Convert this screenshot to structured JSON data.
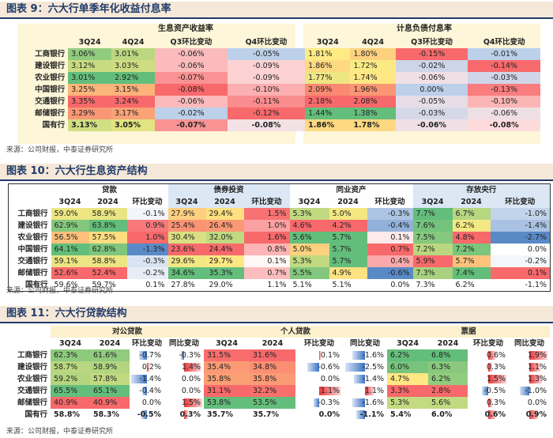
{
  "fig9": {
    "title": "图表 9：六大行单季年化收益付息率",
    "group1": "生息资产收益率",
    "group2": "计息负债付息率",
    "cols": [
      "3Q24",
      "4Q24",
      "Q3环比变动",
      "Q4环比变动",
      "3Q24",
      "4Q24",
      "Q3环比变动",
      "Q4环比变动"
    ],
    "rows": [
      {
        "bank": "工商银行",
        "v": [
          "3.06%",
          "3.01%",
          "-0.06%",
          "-0.05%",
          "1.81%",
          "1.80%",
          "-0.15%",
          "-0.01%"
        ]
      },
      {
        "bank": "建设银行",
        "v": [
          "3.12%",
          "3.03%",
          "-0.06%",
          "-0.09%",
          "1.86%",
          "1.72%",
          "-0.02%",
          "-0.14%"
        ]
      },
      {
        "bank": "农业银行",
        "v": [
          "3.01%",
          "2.92%",
          "-0.07%",
          "-0.09%",
          "1.77%",
          "1.74%",
          "-0.06%",
          "-0.03%"
        ]
      },
      {
        "bank": "中国银行",
        "v": [
          "3.25%",
          "3.15%",
          "-0.08%",
          "-0.10%",
          "2.09%",
          "1.96%",
          "0.00%",
          "-0.13%"
        ]
      },
      {
        "bank": "交通银行",
        "v": [
          "3.35%",
          "3.24%",
          "-0.06%",
          "-0.11%",
          "2.18%",
          "2.08%",
          "-0.05%",
          "-0.10%"
        ]
      },
      {
        "bank": "邮储银行",
        "v": [
          "3.29%",
          "3.17%",
          "-0.02%",
          "-0.12%",
          "1.44%",
          "1.38%",
          "-0.03%",
          "-0.06%"
        ]
      },
      {
        "bank": "国有行",
        "v": [
          "3.13%",
          "3.05%",
          "-0.07%",
          "-0.08%",
          "1.86%",
          "1.78%",
          "-0.06%",
          "-0.08%"
        ]
      }
    ],
    "colors": [
      [
        "#ffffff",
        "#ffffff",
        "#ffffff",
        "#ffffff",
        "#ffffff",
        "#ffffff",
        "#ffffff",
        "#ffffff"
      ]
    ],
    "source": "来源：公司财报，中泰证券研究所"
  },
  "fig10": {
    "title": "图表 10：六大行生息资产结构",
    "groups": [
      "贷款",
      "债券投资",
      "同业资产",
      "存放央行"
    ],
    "cols": [
      "3Q24",
      "2024",
      "环比变动",
      "3Q24",
      "2024",
      "环比变动",
      "3Q24",
      "2024",
      "环比变动",
      "3Q24",
      "2024",
      "环比变动"
    ],
    "rows": [
      {
        "bank": "工商银行",
        "v": [
          "59.0%",
          "58.9%",
          "-0.1%",
          "27.9%",
          "29.4%",
          "1.5%",
          "5.3%",
          "5.0%",
          "-0.3%",
          "7.7%",
          "6.7%",
          "-1.0%"
        ]
      },
      {
        "bank": "建设银行",
        "v": [
          "62.9%",
          "63.8%",
          "0.9%",
          "25.4%",
          "26.4%",
          "1.0%",
          "4.6%",
          "4.2%",
          "-0.4%",
          "7.6%",
          "6.2%",
          "-1.4%"
        ]
      },
      {
        "bank": "农业银行",
        "v": [
          "56.5%",
          "57.5%",
          "1.0%",
          "30.4%",
          "32.0%",
          "1.6%",
          "5.6%",
          "5.7%",
          "0.1%",
          "7.5%",
          "4.8%",
          "-2.7%"
        ]
      },
      {
        "bank": "中国银行",
        "v": [
          "64.1%",
          "62.8%",
          "-1.3%",
          "23.6%",
          "24.4%",
          "0.8%",
          "5.0%",
          "5.7%",
          "0.7%",
          "7.2%",
          "7.2%",
          "0.0%"
        ]
      },
      {
        "bank": "交通银行",
        "v": [
          "59.1%",
          "58.8%",
          "-0.3%",
          "29.6%",
          "29.7%",
          "0.1%",
          "5.3%",
          "5.7%",
          "0.4%",
          "5.9%",
          "5.7%",
          "-0.2%"
        ]
      },
      {
        "bank": "邮储银行",
        "v": [
          "52.6%",
          "52.4%",
          "-0.2%",
          "34.6%",
          "35.3%",
          "0.7%",
          "5.5%",
          "4.9%",
          "-0.6%",
          "7.3%",
          "7.4%",
          "0.1%"
        ]
      },
      {
        "bank": "国有行",
        "v": [
          "59.6%",
          "59.7%",
          "0.1%",
          "27.8%",
          "29.0%",
          "1.1%",
          "5.1%",
          "5.1%",
          "0.0%",
          "7.3%",
          "6.2%",
          "-1.1%"
        ]
      }
    ],
    "source": "来源：公司财报，中泰证券研究所"
  },
  "fig11": {
    "title": "图表 11：六大行贷款结构",
    "groups": [
      "对公贷款",
      "个人贷款",
      "票据"
    ],
    "cols": [
      "3Q24",
      "2024",
      "环比变动",
      "同比变动",
      "3Q24",
      "2024",
      "环比变动",
      "同比变动",
      "3Q24",
      "2024",
      "环比变动",
      "同比变动"
    ],
    "rows": [
      {
        "bank": "工商银行",
        "v": [
          "62.3%",
          "61.6%",
          "-0.7%",
          "-0.3%",
          "31.5%",
          "31.6%",
          "0.1%",
          "-1.6%",
          "6.2%",
          "6.8%",
          "0.6%",
          "1.9%"
        ]
      },
      {
        "bank": "建设银行",
        "v": [
          "58.7%",
          "58.9%",
          "0.2%",
          "1.4%",
          "35.4%",
          "34.8%",
          "-0.6%",
          "-2.5%",
          "6.0%",
          "6.3%",
          "0.3%",
          "1.1%"
        ]
      },
      {
        "bank": "农业银行",
        "v": [
          "59.2%",
          "57.8%",
          "-1.4%",
          "0.0%",
          "35.8%",
          "35.8%",
          "0.0%",
          "-1.4%",
          "4.7%",
          "6.2%",
          "1.5%",
          "1.3%"
        ]
      },
      {
        "bank": "交通银行",
        "v": [
          "65.5%",
          "65.1%",
          "-0.4%",
          "0.0%",
          "31.1%",
          "32.2%",
          "1.1%",
          "1.1%",
          "3.3%",
          "2.8%",
          "-0.5%",
          "-1.0%"
        ]
      },
      {
        "bank": "邮储银行",
        "v": [
          "40.9%",
          "40.9%",
          "0.0%",
          "1.5%",
          "53.8%",
          "53.5%",
          "-0.3%",
          "-1.6%",
          "5.3%",
          "5.6%",
          "0.3%",
          "0.0%"
        ]
      },
      {
        "bank": "国有行",
        "v": [
          "58.8%",
          "58.3%",
          "-0.5%",
          "0.3%",
          "35.7%",
          "35.7%",
          "0.0%",
          "-1.1%",
          "5.4%",
          "6.0%",
          "0.6%",
          "0.9%"
        ]
      }
    ],
    "source": "来源：公司财报，中泰证券研究所"
  }
}
